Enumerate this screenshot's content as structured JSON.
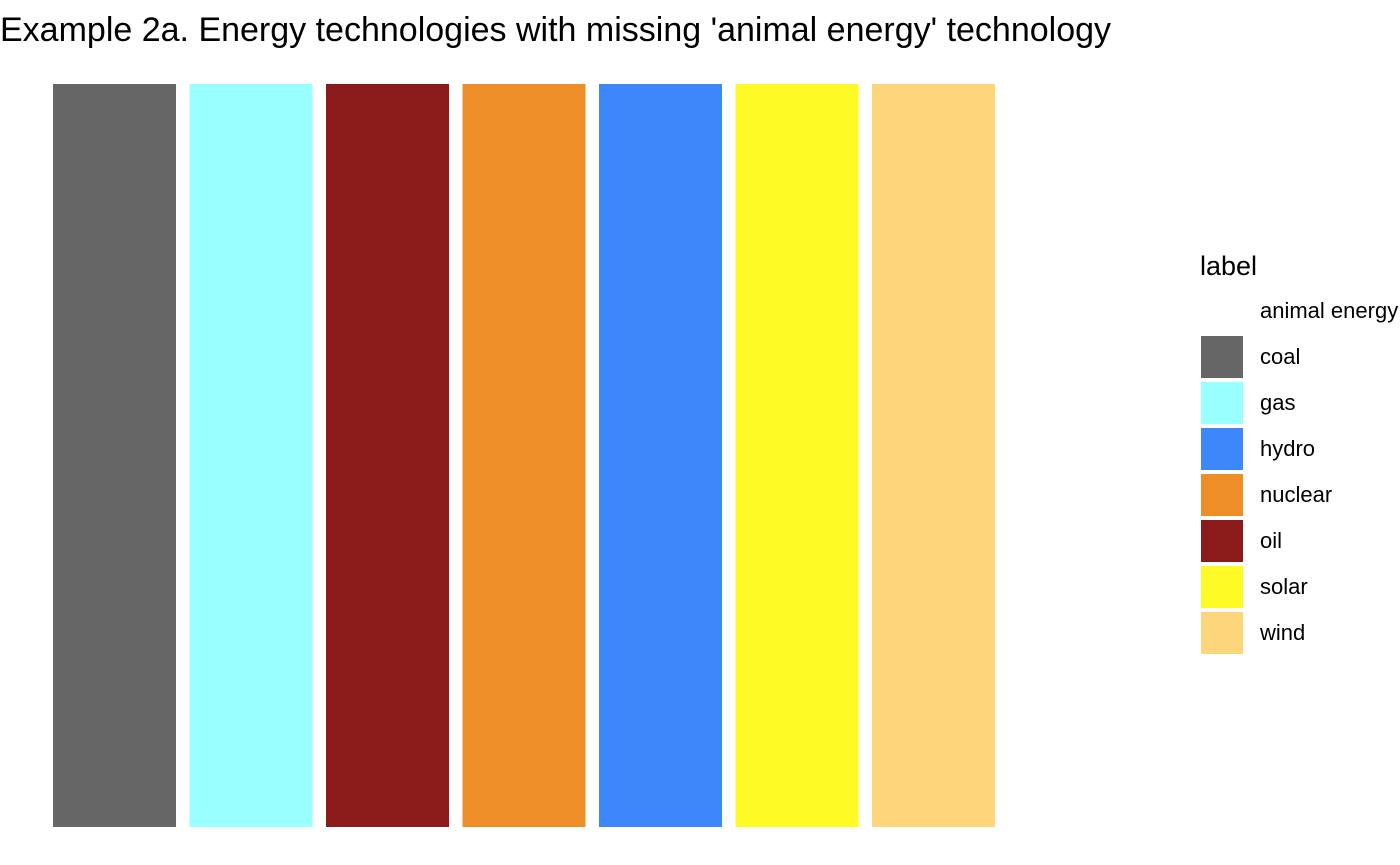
{
  "chart_data": {
    "type": "bar",
    "title": "Example 2a. Energy technologies with missing 'animal energy' technology",
    "xlabel": "",
    "ylabel": "",
    "grid": false,
    "categories": [
      "coal",
      "gas",
      "oil",
      "nuclear",
      "hydro",
      "solar",
      "wind"
    ],
    "values": [
      1,
      1,
      1,
      1,
      1,
      1,
      1
    ],
    "bar_colors": [
      "#666666",
      "#99ffff",
      "#8b1a1a",
      "#ee8e29",
      "#3e87fa",
      "#fdfa26",
      "#fdd57b"
    ],
    "legend": {
      "title": "label",
      "placement": "right",
      "items": [
        {
          "label": "animal energy",
          "color": "#ffffff"
        },
        {
          "label": "coal",
          "color": "#666666"
        },
        {
          "label": "gas",
          "color": "#99ffff"
        },
        {
          "label": "hydro",
          "color": "#3e87fa"
        },
        {
          "label": "nuclear",
          "color": "#ee8e29"
        },
        {
          "label": "oil",
          "color": "#8b1a1a"
        },
        {
          "label": "solar",
          "color": "#fdfa26"
        },
        {
          "label": "wind",
          "color": "#fdd57b"
        }
      ]
    }
  }
}
